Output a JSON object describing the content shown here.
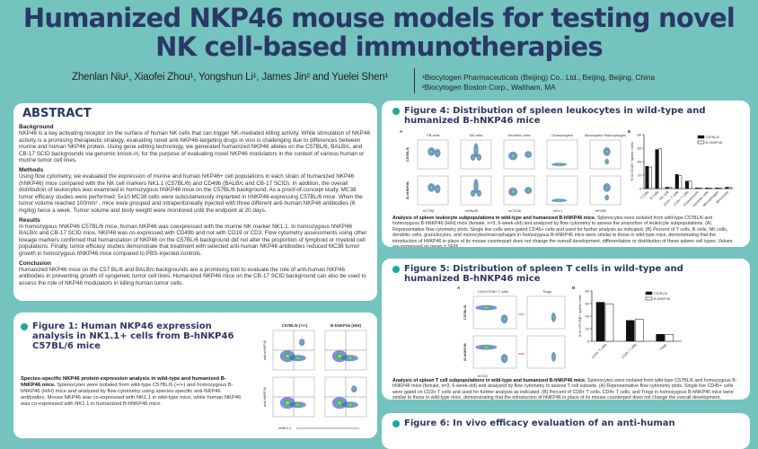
{
  "header": {
    "title_line1": "Humanized NKP46 mouse models for testing novel",
    "title_line2": "NK cell-based immunotherapies",
    "authors": "Zhenlan Niu¹, Xiaofei Zhou¹, Yongshun Li¹, James Jin² and Yuelei Shen¹",
    "affiliation1": "¹Biocytogen Pharmaceuticals (Beijing) Co., Ltd., Beijing, Beijing, China",
    "affiliation2": "²Biocytogen Boston Corp., Waltham, MA"
  },
  "abstract": {
    "heading": "ABSTRACT",
    "background_h": "Background",
    "background": "NKP46 is a key activating receptor on the surface of human NK cells that can trigger NK-mediated killing activity. While stimulation of NKP46 activity is a promising therapeutic strategy, evaluating novel anti-NKP46-targeting drugs in vivo is challenging due to differences between murine and human NKP46 protein. Using gene editing technology, we generated humanized NKP46 alleles on the C57BL/6, BALB/c, and CB-17 SCID backgrounds via genomic knock-in, for the purpose of evaluating novel NKP46 modulators in the context of various human or murine tumor cell lines.",
    "methods_h": "Methods",
    "methods": "Using flow cytometry, we evaluated the expression of murine and human NKP46+ cell populations in each strain of humanized NKP46 (hNKP46) mice compared with the NK cell markers NK1.1 (C57BL/6) and CD49b (BALB/c and CB-17 SCID). In addition, the overall distribution of leukocytes was examined in homozygous hNKP46 mice on the C57BL/6 background. As a proof-of-concept study, MC38 tumor efficacy studies were performed: 5x10 MC38 cells were subcutaneously implanted in hNKP46-expressing C57BL/6 mice. When the tumor volume reached 100mm³ , mice were grouped and intraperitoneally injected with three different anti-human NKP46 antibodies (6 mg/kg) twice a week. Tumor volume and body weight were monitored until the endpoint at 20 days.",
    "results_h": "Results",
    "results": "In homozygous hNKP46 C57BL/6 mice, human NKP46 was coexpressed with the murine NK marker NK1.1. In homozygous hNKP46 BALB/c and CB-17 SCID mice, NKP46 was co-expressed with CD49b and not with CD19 or CD3. Flow cytometry assessments using other lineage markers confirmed that humanization of NKP46 on the C57BL/6 background did not alter the proportion of lymphoid or myeloid cell populations. Finally, tumor efficacy studies demonstrate that treatment with selected anti-human NKP46 antibodies reduced MC38 tumor growth in homozygous hNKP46 mice compared to PBS-injected controls.",
    "conclusion_h": "Conclusion",
    "conclusion": "Humanized NKP46 mice on the C57 BL/6 and BALB/c backgrounds are a promising tool to evaluate the role of anti-human NKP46 antibodies in preventing growth of syngeneic tumor cell lines. Humanized NKP46 mice on the CB-17 SCID background can also be used to assess the role of NKP46 modulators in killing human tumor cells."
  },
  "figure1": {
    "title": "Figure 1: Human NKP46 expression analysis in NK1.1+ cells from B-hNKP46 C57BL/6 mice",
    "caption_bold": "Species-specific NKP46 protein expression analysis in wild-type and humanized B-hNKP46 mice.",
    "caption": " Splenocytes were isolated from wild-type C57BL/6 (+/+) and homozygous B-hNKP46 (H/H) mice and analyzed by flow cytometry using species-specific anti-NKP46 antibodies. Mouse NKP46 was co-expressed with NK1.1 in wild-type mice, while human NKP46 was co-expressed with NK1.1 in humanized B-hNKP46 mice.",
    "col1": "C57BL/6 (+/+)",
    "col2": "B-hNKP46 (H/H)",
    "xlabel": "mNK1.1",
    "ylabel1": "anti-mNKP46",
    "ylabel2": "anti-hNKP46"
  },
  "figure4": {
    "title": "Figure 4: Distribution of spleen leukocytes in wild-type and humanized B-hNKP46 mice",
    "panel_a": "A",
    "panel_b": "B",
    "plot_titles": [
      "T/B cells",
      "NK cells",
      "Dendritic cells",
      "Granulocytes",
      "Monocytes/ Macrophages"
    ],
    "row_labels": [
      "C57BL/6",
      "B-hNKP46"
    ],
    "xlabels": [
      "mTCRβ",
      "mNKp46",
      "mCD11b",
      "mGr-1",
      "mF4/80"
    ],
    "caption_bold": "Analysis of spleen leukocyte subpopulations in wild-type and humanized B-hNKP46 mice.",
    "caption": " Splenocytes were isolated from wild-type C57BL/6 and homozygous B-hNKP46 (H/H) mice (female, n=3, 6-week-old) and analyzed by flow cytometry to assess the proportion of leukocyte subpopulations. (A) Representative flow cytometry plots. Single live cells were gated CD45+ cells and used for further analysis as indicated. (B) Percent of T cells, B cells, NK cells, dendritic cells, granulocytes, and monocytes/macrophages in homozygous B-hNKP46 mice were similar to those in wild-type mice, demonstrating that the introduction of hNKP46 in place of its mouse counterpart does not change the overall development, differentiation or distribution of these spleen cell types. Values are expressed as mean ± SEM."
  },
  "figure5": {
    "title": "Figure 5: Distribution of spleen T cells in wild-type and humanized B-hNKP46 mice",
    "panel_a": "A",
    "panel_b": "B",
    "plot_titles": [
      "CD4+/CD8+ T cells",
      "Tregs"
    ],
    "row_labels": [
      "C57BL/6",
      "B-hNKP46"
    ],
    "xlabel": "mCD4",
    "caption_bold": "Analysis of spleen T cell subpopulations in wild-type and humanized B-hNKP46 mice.",
    "caption": " Splenocytes were isolated from wild-type C57BL/6 and homozygous B-hNKP46 mice (female, n=3, 6-week-old) and analyzed by flow cytometry to assess T cell subsets. (A) Representative flow cytometry plots. Single live CD45+ cells were gated on CD3+ T cells and used for further analysis as indicated. (B) Percent of CD8+ T cells, CD4+ T cells, and Tregs in homozygous B-hNKP46 mice were similar to those in wild-type mice, demonstrating that the introduction of hNKP46 in place of its mouse counterpart does not change the overall development, differentiation, or distribution of these spleen T cell subtypes. Values are expressed as mean ± SEM."
  },
  "figure6": {
    "title": "Figure 6: In vivo efficacy evaluation of an anti-human"
  },
  "colors": {
    "background": "#74c3be",
    "title": "#2a3866",
    "bullet": "#1fa89a"
  },
  "chart_data": [
    {
      "type": "bar",
      "ylabel": "% in CD45+ spleen cells",
      "ylim": [
        0,
        80
      ],
      "yticks": [
        0,
        20,
        40,
        60,
        80
      ],
      "legend": "top-right",
      "categories": [
        "T Cells",
        "B Cells",
        "NK Cell",
        "CD4+ T cells",
        "CD8+ T cells",
        "Granulocytes",
        "Dendritic cells",
        "Macrophages",
        "Monocytes"
      ],
      "series": [
        {
          "name": "C57BL/6",
          "values": [
            33,
            58,
            2,
            21,
            11,
            1,
            1,
            1,
            2
          ]
        },
        {
          "name": "B-hNKP46",
          "values": [
            32,
            59,
            2,
            19,
            11,
            1,
            1,
            1,
            2
          ]
        }
      ]
    },
    {
      "type": "bar",
      "ylabel": "% in mTCRβ+ spleen cells",
      "ylim": [
        0,
        80
      ],
      "yticks": [
        0,
        20,
        40,
        60,
        80
      ],
      "legend": "top-right",
      "categories": [
        "CD4+ T cells",
        "CD8+ T cells",
        "Tregs"
      ],
      "series": [
        {
          "name": "C57BL/6",
          "values": [
            62,
            33,
            11
          ]
        },
        {
          "name": "B-hNKP46",
          "values": [
            59,
            35,
            11
          ]
        }
      ]
    }
  ]
}
